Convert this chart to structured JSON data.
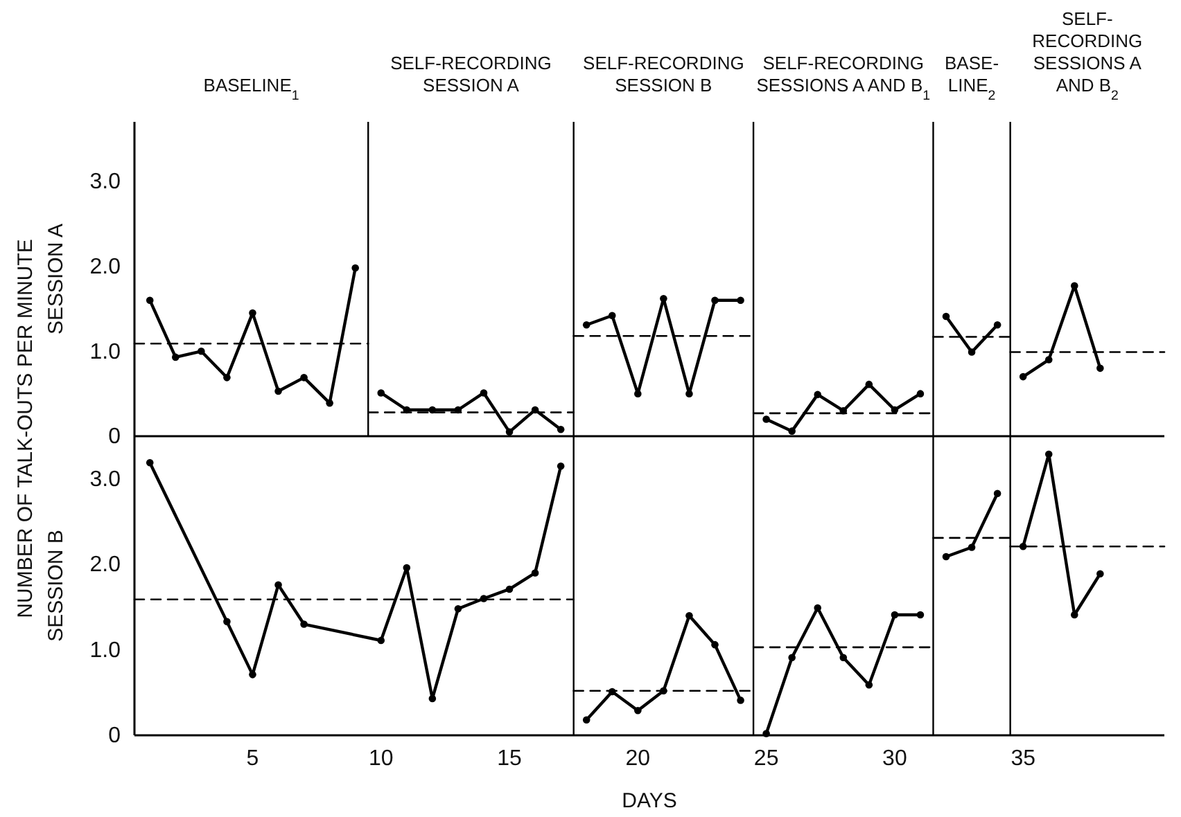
{
  "chart_data": [
    {
      "type": "line",
      "ylabel": "SESSION A",
      "annotations": [
        "NUMBER OF TALK-OUTS PER MINUTE",
        "BASELINE$_{1}$",
        "SELF-RECORDING SESSION A",
        "SELF-RECORDING SESSION B",
        "SELF-RECORDING SESSIONS A AND B$_{1}$",
        "BASE-LINE$_{2}$",
        "SELF-RECORDING SESSIONS A AND B$_{2}$"
      ],
      "xlim": [
        0.4,
        40.5
      ],
      "xticks": [
        5,
        10,
        15,
        20,
        25,
        30,
        35
      ],
      "ylim": [
        0,
        3.7
      ],
      "yticks": [
        {
          "value": 0,
          "label": "0"
        },
        {
          "value": 1,
          "label": "1.0"
        },
        {
          "value": 2,
          "label": "2.0"
        },
        {
          "value": 3,
          "label": "3.0"
        }
      ],
      "tick_labels": "y",
      "marker": "circle",
      "line_style": "solid",
      "ref_lines": [
        {
          "axis": "x",
          "value": 9.5
        },
        {
          "axis": "x",
          "value": 17.5
        },
        {
          "axis": "x",
          "value": 24.5
        },
        {
          "axis": "x",
          "value": 31.5
        },
        {
          "axis": "x",
          "value": 34.5
        }
      ],
      "series": [
        {
          "x": [
            1,
            2,
            3,
            4,
            5,
            6,
            7,
            8,
            9
          ],
          "values": [
            1.6,
            0.93,
            1.0,
            0.69,
            1.45,
            0.53,
            0.69,
            0.39,
            1.98
          ],
          "color": "#000000"
        },
        {
          "type": "line",
          "x": [
            0.4,
            9.5
          ],
          "values": [
            1.09,
            1.09
          ],
          "color": "#000000",
          "marker": "none",
          "line_style": "dashed"
        },
        {
          "x": [
            10,
            11,
            12,
            13,
            14,
            15,
            16,
            17
          ],
          "values": [
            0.51,
            0.31,
            0.31,
            0.31,
            0.51,
            0.05,
            0.31,
            0.08
          ],
          "color": "#000000"
        },
        {
          "type": "line",
          "x": [
            9.5,
            17.5
          ],
          "values": [
            0.28,
            0.28
          ],
          "color": "#000000",
          "marker": "none",
          "line_style": "dashed"
        },
        {
          "x": [
            18,
            19,
            20,
            21,
            22,
            23,
            24
          ],
          "values": [
            1.31,
            1.42,
            0.5,
            1.62,
            0.5,
            1.6,
            1.6
          ],
          "color": "#000000"
        },
        {
          "type": "line",
          "x": [
            17.5,
            24.5
          ],
          "values": [
            1.18,
            1.18
          ],
          "color": "#000000",
          "marker": "none",
          "line_style": "dashed"
        },
        {
          "x": [
            25,
            26,
            27,
            28,
            29,
            30,
            31
          ],
          "values": [
            0.2,
            0.06,
            0.49,
            0.3,
            0.61,
            0.31,
            0.5
          ],
          "color": "#000000"
        },
        {
          "type": "line",
          "x": [
            24.5,
            31.5
          ],
          "values": [
            0.27,
            0.27
          ],
          "color": "#000000",
          "marker": "none",
          "line_style": "dashed"
        },
        {
          "x": [
            32,
            33,
            34
          ],
          "values": [
            1.41,
            0.99,
            1.31
          ],
          "color": "#000000"
        },
        {
          "type": "line",
          "x": [
            31.5,
            34.5
          ],
          "values": [
            1.17,
            1.17
          ],
          "color": "#000000",
          "marker": "none",
          "line_style": "dashed"
        },
        {
          "x": [
            35,
            36,
            37,
            38
          ],
          "values": [
            0.7,
            0.9,
            1.77,
            0.8
          ],
          "color": "#000000"
        },
        {
          "type": "line",
          "x": [
            34.5,
            40.5
          ],
          "values": [
            0.99,
            0.99
          ],
          "color": "#000000",
          "marker": "none",
          "line_style": "dashed"
        }
      ]
    },
    {
      "type": "line",
      "ylabel": "SESSION B",
      "xlabel": "DAYS",
      "xlim": [
        0.4,
        40.5
      ],
      "xticks": [
        5,
        10,
        15,
        20,
        25,
        30,
        35
      ],
      "ylim": [
        0,
        3.5
      ],
      "yticks": [
        {
          "value": 0,
          "label": "0"
        },
        {
          "value": 1,
          "label": "1.0"
        },
        {
          "value": 2,
          "label": "2.0"
        },
        {
          "value": 3,
          "label": "3.0"
        }
      ],
      "marker": "circle",
      "line_style": "solid",
      "ref_lines": [
        {
          "axis": "x",
          "value": 17.5
        },
        {
          "axis": "x",
          "value": 24.5
        },
        {
          "axis": "x",
          "value": 31.5
        },
        {
          "axis": "x",
          "value": 34.5
        }
      ],
      "series": [
        {
          "x": [
            1,
            4,
            5,
            6,
            7,
            10,
            11,
            12,
            13,
            14,
            15,
            16,
            17
          ],
          "values": [
            3.19,
            1.33,
            0.71,
            1.76,
            1.3,
            1.11,
            1.96,
            0.43,
            1.48,
            1.6,
            1.71,
            1.9,
            3.15
          ],
          "color": "#000000"
        },
        {
          "type": "line",
          "x": [
            0.4,
            17.5
          ],
          "values": [
            1.59,
            1.59
          ],
          "color": "#000000",
          "marker": "none",
          "line_style": "dashed"
        },
        {
          "x": [
            18,
            19,
            20,
            21,
            22,
            23,
            24
          ],
          "values": [
            0.18,
            0.51,
            0.29,
            0.52,
            1.4,
            1.06,
            0.41
          ],
          "color": "#000000"
        },
        {
          "type": "line",
          "x": [
            17.5,
            24.5
          ],
          "values": [
            0.52,
            0.52
          ],
          "color": "#000000",
          "marker": "none",
          "line_style": "dashed"
        },
        {
          "x": [
            25,
            26,
            27,
            28,
            29,
            30,
            31
          ],
          "values": [
            0.02,
            0.91,
            1.49,
            0.91,
            0.59,
            1.41,
            1.41
          ],
          "color": "#000000"
        },
        {
          "type": "line",
          "x": [
            24.5,
            31.5
          ],
          "values": [
            1.03,
            1.03
          ],
          "color": "#000000",
          "marker": "none",
          "line_style": "dashed"
        },
        {
          "x": [
            32,
            33,
            34
          ],
          "values": [
            2.09,
            2.2,
            2.83
          ],
          "color": "#000000"
        },
        {
          "type": "line",
          "x": [
            31.5,
            34.5
          ],
          "values": [
            2.31,
            2.31
          ],
          "color": "#000000",
          "marker": "none",
          "line_style": "dashed"
        },
        {
          "x": [
            35,
            36,
            37,
            38
          ],
          "values": [
            2.21,
            3.29,
            1.41,
            1.89
          ],
          "color": "#000000"
        },
        {
          "type": "line",
          "x": [
            34.5,
            40.5
          ],
          "values": [
            2.21,
            2.21
          ],
          "color": "#000000",
          "marker": "none",
          "line_style": "dashed"
        }
      ]
    }
  ]
}
